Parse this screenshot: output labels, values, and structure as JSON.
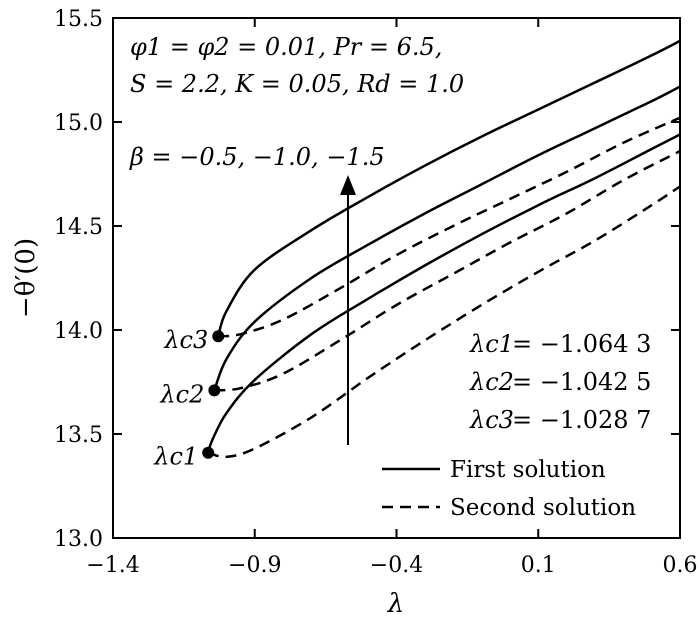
{
  "chart_data": {
    "type": "line",
    "xlabel": "λ",
    "ylabel": "−θ′(0)",
    "xlim": [
      -1.4,
      0.6
    ],
    "ylim": [
      13.0,
      15.5
    ],
    "xticks": [
      -1.4,
      -0.9,
      -0.4,
      0.1,
      0.6
    ],
    "xtick_labels": [
      "−1.4",
      "−0.9",
      "−0.4",
      "0.1",
      "0.6"
    ],
    "yticks": [
      13.0,
      13.5,
      14.0,
      14.5,
      15.0,
      15.5
    ],
    "ytick_labels": [
      "13.0",
      "13.5",
      "14.0",
      "14.5",
      "15.0",
      "15.5"
    ],
    "grid": false,
    "params_line1": "φ1 = φ2 = 0.01, Pr = 6.5,",
    "params_line2": "S = 2.2, K = 0.05, Rd = 1.0",
    "beta_label": "β = −0.5, −1.0, −1.5",
    "critical_values": [
      {
        "name": "λc1",
        "value": "= −1.064 3"
      },
      {
        "name": "λc2",
        "value": "= −1.042 5"
      },
      {
        "name": "λc3",
        "value": "= −1.028 7"
      }
    ],
    "legend": {
      "position": "bottom-right",
      "entries": [
        {
          "label": "First solution",
          "style": "solid"
        },
        {
          "label": "Second solution",
          "style": "dashed"
        }
      ]
    },
    "series": [
      {
        "style": "solid",
        "critical": "λc3",
        "x": [
          -1.0287,
          -1.0,
          -0.9,
          -0.7,
          -0.5,
          -0.3,
          -0.1,
          0.1,
          0.3,
          0.5,
          0.6
        ],
        "y": [
          13.97,
          14.09,
          14.29,
          14.48,
          14.64,
          14.79,
          14.93,
          15.06,
          15.19,
          15.32,
          15.39
        ]
      },
      {
        "style": "dashed",
        "critical": "λc3",
        "x": [
          -1.0287,
          -0.95,
          -0.8,
          -0.6,
          -0.4,
          -0.2,
          0.0,
          0.2,
          0.4,
          0.6
        ],
        "y": [
          13.97,
          13.98,
          14.05,
          14.2,
          14.36,
          14.5,
          14.63,
          14.76,
          14.9,
          15.02
        ]
      },
      {
        "style": "solid",
        "critical": "λc2",
        "x": [
          -1.0425,
          -1.0,
          -0.9,
          -0.7,
          -0.5,
          -0.3,
          -0.1,
          0.1,
          0.3,
          0.5,
          0.6
        ],
        "y": [
          13.71,
          13.86,
          14.04,
          14.25,
          14.41,
          14.56,
          14.7,
          14.84,
          14.97,
          15.1,
          15.17
        ]
      },
      {
        "style": "dashed",
        "critical": "λc2",
        "x": [
          -1.0425,
          -0.95,
          -0.8,
          -0.6,
          -0.4,
          -0.2,
          0.0,
          0.2,
          0.4,
          0.6
        ],
        "y": [
          13.71,
          13.72,
          13.79,
          13.95,
          14.12,
          14.27,
          14.42,
          14.56,
          14.72,
          14.86
        ]
      },
      {
        "style": "solid",
        "critical": "λc1",
        "x": [
          -1.0643,
          -1.05,
          -1.0,
          -0.9,
          -0.7,
          -0.5,
          -0.3,
          -0.1,
          0.1,
          0.3,
          0.5,
          0.6
        ],
        "y": [
          13.41,
          13.47,
          13.6,
          13.76,
          13.98,
          14.15,
          14.31,
          14.46,
          14.6,
          14.73,
          14.87,
          14.94
        ]
      },
      {
        "style": "dashed",
        "critical": "λc1",
        "x": [
          -1.0643,
          -1.0,
          -0.9,
          -0.7,
          -0.5,
          -0.3,
          -0.1,
          0.1,
          0.3,
          0.5,
          0.6
        ],
        "y": [
          13.41,
          13.39,
          13.43,
          13.58,
          13.77,
          13.95,
          14.12,
          14.28,
          14.43,
          14.6,
          14.69
        ]
      }
    ]
  }
}
